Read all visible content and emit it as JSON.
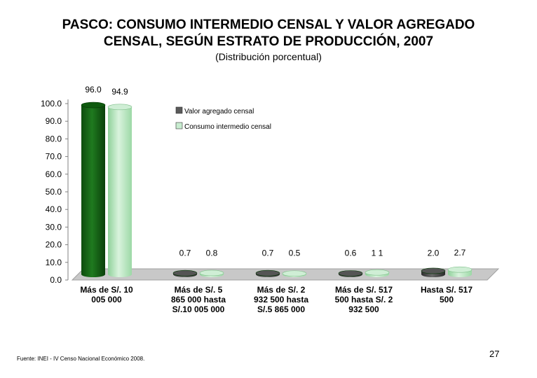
{
  "slide": {
    "title_line1": "PASCO: CONSUMO INTERMEDIO CENSAL Y VALOR AGREGADO",
    "title_line2": "CENSAL, SEGÚN ESTRATO DE PRODUCCIÓN, 2007",
    "subtitle": "(Distribución porcentual)",
    "source": "Fuente: INEI - IV Censo Nacional Económico 2008.",
    "page_number": "27"
  },
  "chart_data": {
    "type": "bar",
    "title": "PASCO: CONSUMO INTERMEDIO CENSAL Y VALOR AGREGADO CENSAL, SEGÚN ESTRATO DE PRODUCCIÓN, 2007",
    "subtitle": "(Distribución porcentual)",
    "categories": [
      [
        "Más de S/. 10",
        "005 000"
      ],
      [
        "Más de S/. 5",
        "865 000  hasta",
        "S/.10 005 000"
      ],
      [
        "Más de S/. 2",
        "932 500  hasta",
        "S/.5 865 000"
      ],
      [
        "Más de S/. 517",
        "500  hasta S/. 2",
        "932 500"
      ],
      [
        "Hasta S/. 517",
        "500"
      ]
    ],
    "series": [
      {
        "name": "Valor agregado censal",
        "values": [
          96.0,
          0.7,
          0.7,
          0.6,
          2.0
        ],
        "labels": [
          "96.0",
          "0.7",
          "0.7",
          "0.6",
          "2.0"
        ],
        "color": "#1f6b1f",
        "color_other": "#4d4d4d"
      },
      {
        "name": "Consumo intermedio censal",
        "values": [
          94.9,
          0.8,
          0.5,
          1.1,
          2.7
        ],
        "labels": [
          "94.9",
          "0.8",
          "0.5",
          "1 1",
          "2.7"
        ],
        "color": "#b8e6bf"
      }
    ],
    "y_ticks": [
      "0.0",
      "10.0",
      "20.0",
      "30.0",
      "40.0",
      "50.0",
      "60.0",
      "70.0",
      "80.0",
      "90.0",
      "100.0"
    ],
    "ylim": [
      0,
      100
    ],
    "legend_position": "top-right",
    "xlabel": "",
    "ylabel": ""
  }
}
